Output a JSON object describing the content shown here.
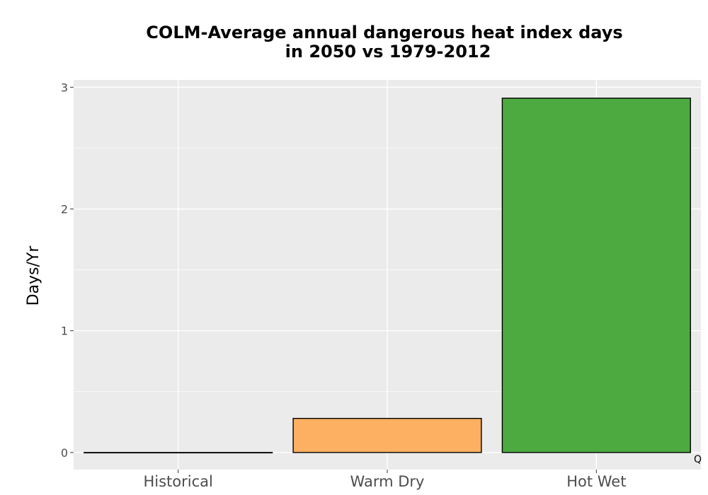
{
  "chart_data": {
    "type": "bar",
    "title_lines": [
      "COLM-Average annual dangerous heat index days",
      "in 2050 vs 1979-2012"
    ],
    "xlabel": "",
    "ylabel": "Days/Yr",
    "categories": [
      "Historical",
      "Warm Dry",
      "Hot Wet"
    ],
    "values": [
      0.0,
      0.28,
      2.91
    ],
    "colors": [
      "#000000",
      "#FDB062",
      "#4DAA40"
    ],
    "ylim": [
      -0.14,
      3.06
    ],
    "yticks": [
      0,
      1,
      2,
      3
    ],
    "ytick_labels": [
      "0",
      "1",
      "2",
      "3"
    ],
    "grid": true,
    "legend": "none",
    "panel_background": "#EBEBEB",
    "corner_note": "Q"
  }
}
